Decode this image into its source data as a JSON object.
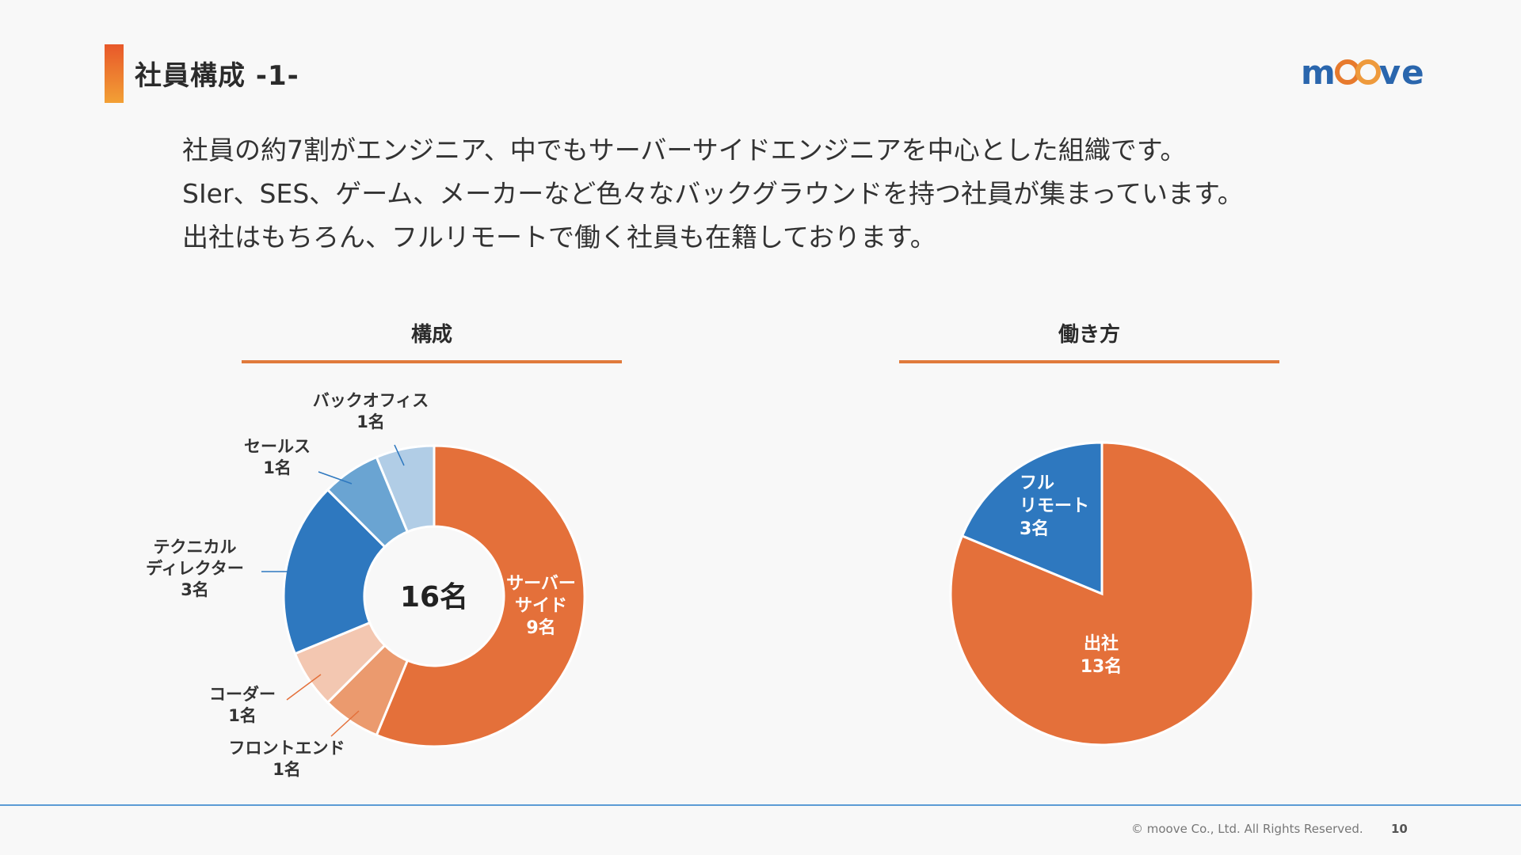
{
  "header": {
    "title": "社員構成 -1-",
    "logo_text": "moove",
    "accent_color": "#e8582a"
  },
  "intro": {
    "lines": [
      "社員の約7割がエンジニア、中でもサーバーサイドエンジニアを中心とした組織です。",
      "SIer、SES、ゲーム、メーカーなど色々なバックグラウンドを持つ社員が集まっています。",
      "出社はもちろん、フルリモートで働く社員も在籍しております。"
    ]
  },
  "chart_data": [
    {
      "type": "pie",
      "variant": "donut",
      "title": "構成",
      "center_label": "16名",
      "slices": [
        {
          "name": "サーバーサイド",
          "label_lines": [
            "サーバー",
            "サイド",
            "9名"
          ],
          "value": 9,
          "color": "#e4703a"
        },
        {
          "name": "フロントエンド",
          "label_lines": [
            "フロントエンド",
            "1名"
          ],
          "value": 1,
          "color": "#eb9a6e"
        },
        {
          "name": "コーダー",
          "label_lines": [
            "コーダー",
            "1名"
          ],
          "value": 1,
          "color": "#f3c7b1"
        },
        {
          "name": "テクニカルディレクター",
          "label_lines": [
            "テクニカル",
            "ディレクター",
            "3名"
          ],
          "value": 3,
          "color": "#2e78bf"
        },
        {
          "name": "セールス",
          "label_lines": [
            "セールス",
            "1名"
          ],
          "value": 1,
          "color": "#6aa4d2"
        },
        {
          "name": "バックオフィス",
          "label_lines": [
            "バックオフィス",
            "1名"
          ],
          "value": 1,
          "color": "#b1cde6"
        }
      ]
    },
    {
      "type": "pie",
      "title": "働き方",
      "slices": [
        {
          "name": "出社",
          "label_lines": [
            "出社",
            "13名"
          ],
          "value": 13,
          "color": "#e4703a"
        },
        {
          "name": "フルリモート",
          "label_lines": [
            "フル",
            "リモート",
            "3名"
          ],
          "value": 3,
          "color": "#2e78bf"
        }
      ]
    }
  ],
  "footer": {
    "copyright": "© moove Co., Ltd. All Rights Reserved.",
    "page_number": "10",
    "line_color": "#5b9bd5"
  }
}
